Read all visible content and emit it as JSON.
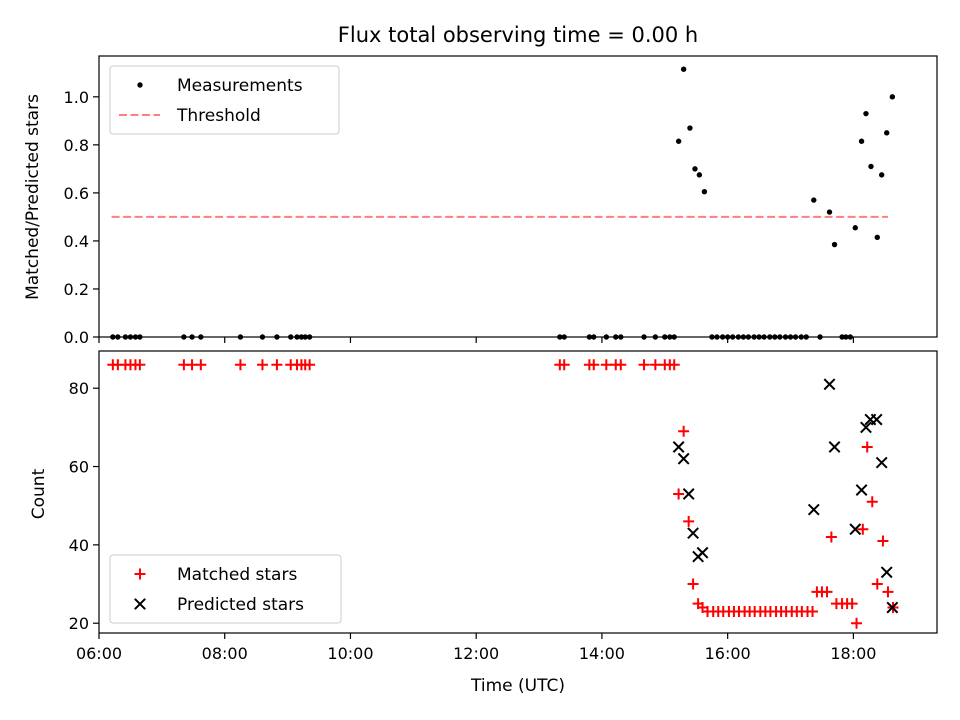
{
  "chart_data": [
    {
      "type": "scatter",
      "title": "Flux total observing time = 0.00 h",
      "ylabel": "Matched/Predicted stars",
      "xlabel": "",
      "xlim": [
        6.0,
        19.33
      ],
      "ylim": [
        0,
        1.17
      ],
      "yticks": [
        "0.0",
        "0.2",
        "0.4",
        "0.6",
        "0.8",
        "1.0"
      ],
      "ytick_values": [
        0,
        0.2,
        0.4,
        0.6,
        0.8,
        1.0
      ],
      "grid": false,
      "legend_position": "upper-left",
      "threshold": {
        "name": "Threshold",
        "value": 0.5,
        "x_start": 6.2,
        "x_end": 18.55,
        "color": "#ff7f7f"
      },
      "series": [
        {
          "name": "Measurements",
          "color": "#000000",
          "marker": "dot",
          "points": [
            [
              6.22,
              0
            ],
            [
              6.3,
              0
            ],
            [
              6.42,
              0
            ],
            [
              6.5,
              0
            ],
            [
              6.58,
              0
            ],
            [
              6.65,
              0
            ],
            [
              7.35,
              0
            ],
            [
              7.48,
              0
            ],
            [
              7.62,
              0
            ],
            [
              8.25,
              0
            ],
            [
              8.6,
              0
            ],
            [
              8.83,
              0
            ],
            [
              9.05,
              0
            ],
            [
              9.15,
              0
            ],
            [
              9.22,
              0
            ],
            [
              9.28,
              0
            ],
            [
              9.35,
              0
            ],
            [
              13.33,
              0
            ],
            [
              13.4,
              0
            ],
            [
              13.8,
              0
            ],
            [
              13.87,
              0
            ],
            [
              14.07,
              0
            ],
            [
              14.22,
              0
            ],
            [
              14.3,
              0
            ],
            [
              14.67,
              0
            ],
            [
              14.85,
              0
            ],
            [
              15.0,
              0
            ],
            [
              15.08,
              0
            ],
            [
              15.15,
              0
            ],
            [
              15.22,
              0.815
            ],
            [
              15.3,
              1.115
            ],
            [
              15.4,
              0.87
            ],
            [
              15.48,
              0.7
            ],
            [
              15.55,
              0.675
            ],
            [
              15.63,
              0.605
            ],
            [
              15.75,
              0
            ],
            [
              15.83,
              0
            ],
            [
              15.92,
              0
            ],
            [
              16.0,
              0
            ],
            [
              16.08,
              0
            ],
            [
              16.17,
              0
            ],
            [
              16.25,
              0
            ],
            [
              16.33,
              0
            ],
            [
              16.42,
              0
            ],
            [
              16.5,
              0
            ],
            [
              16.58,
              0
            ],
            [
              16.67,
              0
            ],
            [
              16.75,
              0
            ],
            [
              16.83,
              0
            ],
            [
              16.92,
              0
            ],
            [
              17.0,
              0
            ],
            [
              17.08,
              0
            ],
            [
              17.17,
              0
            ],
            [
              17.25,
              0
            ],
            [
              17.37,
              0.57
            ],
            [
              17.47,
              0
            ],
            [
              17.62,
              0.52
            ],
            [
              17.7,
              0.385
            ],
            [
              17.82,
              0
            ],
            [
              17.88,
              0
            ],
            [
              17.95,
              0
            ],
            [
              18.03,
              0.455
            ],
            [
              18.13,
              0.815
            ],
            [
              18.2,
              0.93
            ],
            [
              18.28,
              0.71
            ],
            [
              18.38,
              0.415
            ],
            [
              18.45,
              0.675
            ],
            [
              18.53,
              0.85
            ],
            [
              18.62,
              1.0
            ]
          ]
        }
      ]
    },
    {
      "type": "scatter",
      "title": "",
      "ylabel": "Count",
      "xlabel": "Time (UTC)",
      "xlim": [
        6.0,
        19.33
      ],
      "ylim": [
        17.5,
        89.5
      ],
      "yticks": [
        "20",
        "40",
        "60",
        "80"
      ],
      "ytick_values": [
        20,
        40,
        60,
        80
      ],
      "xticks": [
        "06:00",
        "08:00",
        "10:00",
        "12:00",
        "14:00",
        "16:00",
        "18:00"
      ],
      "xtick_values": [
        6,
        8,
        10,
        12,
        14,
        16,
        18
      ],
      "grid": false,
      "legend_position": "lower-left",
      "series": [
        {
          "name": "Matched stars",
          "color": "#ff0000",
          "marker": "plus",
          "points": [
            [
              6.22,
              86
            ],
            [
              6.3,
              86
            ],
            [
              6.42,
              86
            ],
            [
              6.5,
              86
            ],
            [
              6.58,
              86
            ],
            [
              6.65,
              86
            ],
            [
              7.35,
              86
            ],
            [
              7.48,
              86
            ],
            [
              7.62,
              86
            ],
            [
              8.25,
              86
            ],
            [
              8.6,
              86
            ],
            [
              8.83,
              86
            ],
            [
              9.05,
              86
            ],
            [
              9.15,
              86
            ],
            [
              9.22,
              86
            ],
            [
              9.28,
              86
            ],
            [
              9.35,
              86
            ],
            [
              13.33,
              86
            ],
            [
              13.4,
              86
            ],
            [
              13.8,
              86
            ],
            [
              13.87,
              86
            ],
            [
              14.07,
              86
            ],
            [
              14.22,
              86
            ],
            [
              14.3,
              86
            ],
            [
              14.67,
              86
            ],
            [
              14.85,
              86
            ],
            [
              15.0,
              86
            ],
            [
              15.08,
              86
            ],
            [
              15.15,
              86
            ],
            [
              15.22,
              53
            ],
            [
              15.3,
              69
            ],
            [
              15.38,
              46
            ],
            [
              15.45,
              30
            ],
            [
              15.53,
              25
            ],
            [
              15.6,
              24
            ],
            [
              15.68,
              23
            ],
            [
              15.77,
              23
            ],
            [
              15.85,
              23
            ],
            [
              15.93,
              23
            ],
            [
              16.02,
              23
            ],
            [
              16.1,
              23
            ],
            [
              16.18,
              23
            ],
            [
              16.27,
              23
            ],
            [
              16.35,
              23
            ],
            [
              16.43,
              23
            ],
            [
              16.52,
              23
            ],
            [
              16.6,
              23
            ],
            [
              16.68,
              23
            ],
            [
              16.77,
              23
            ],
            [
              16.85,
              23
            ],
            [
              16.93,
              23
            ],
            [
              17.02,
              23
            ],
            [
              17.1,
              23
            ],
            [
              17.18,
              23
            ],
            [
              17.27,
              23
            ],
            [
              17.35,
              23
            ],
            [
              17.42,
              28
            ],
            [
              17.5,
              28
            ],
            [
              17.58,
              28
            ],
            [
              17.65,
              42
            ],
            [
              17.73,
              25
            ],
            [
              17.82,
              25
            ],
            [
              17.9,
              25
            ],
            [
              17.98,
              25
            ],
            [
              18.05,
              20
            ],
            [
              18.15,
              44
            ],
            [
              18.22,
              65
            ],
            [
              18.3,
              51
            ],
            [
              18.38,
              30
            ],
            [
              18.47,
              41
            ],
            [
              18.55,
              28
            ],
            [
              18.63,
              24
            ]
          ]
        },
        {
          "name": "Predicted stars",
          "color": "#000000",
          "marker": "x",
          "points": [
            [
              15.22,
              65
            ],
            [
              15.3,
              62
            ],
            [
              15.38,
              53
            ],
            [
              15.45,
              43
            ],
            [
              15.53,
              37
            ],
            [
              15.6,
              38
            ],
            [
              17.37,
              49
            ],
            [
              17.62,
              81
            ],
            [
              17.7,
              65
            ],
            [
              18.03,
              44
            ],
            [
              18.13,
              54
            ],
            [
              18.2,
              70
            ],
            [
              18.27,
              72
            ],
            [
              18.37,
              72
            ],
            [
              18.45,
              61
            ],
            [
              18.53,
              33
            ],
            [
              18.62,
              24
            ]
          ]
        }
      ]
    }
  ]
}
